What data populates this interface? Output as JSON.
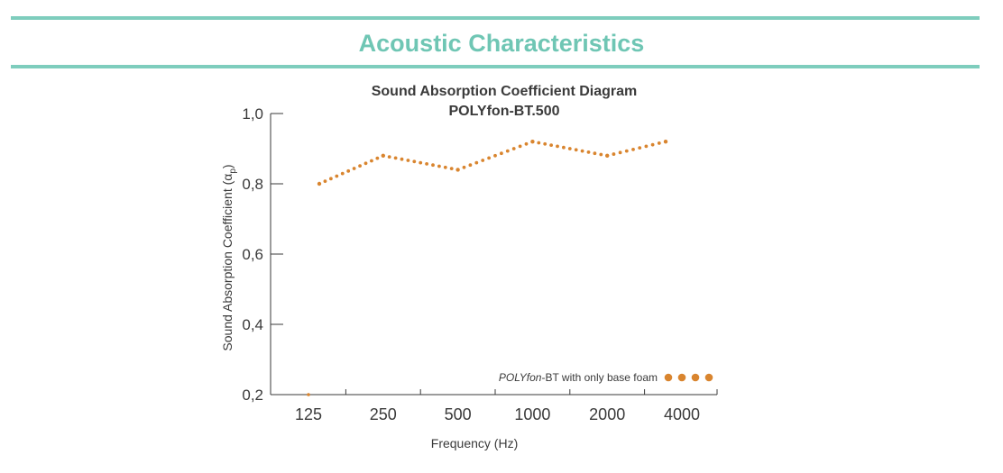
{
  "header": {
    "title": "Acoustic Characteristics"
  },
  "colors": {
    "accent": "#7ECDBD",
    "title": "#6FC6B4",
    "series": "#D9852F",
    "text": "#3a3a3a"
  },
  "chart_data": {
    "type": "line",
    "title": "Sound Absorption Coefficient Diagram",
    "subtitle": "POLYfon-BT.500",
    "xlabel": "Frequency (Hz)",
    "ylabel": "Sound Absorption Coefficient (α",
    "ylabel_sub": "p",
    "ylabel_close": ")",
    "categories": [
      "125",
      "250",
      "500",
      "1000",
      "2000",
      "4000"
    ],
    "yticks": [
      "0,2",
      "0,4",
      "0,6",
      "0,8",
      "1,0"
    ],
    "ylim": [
      0.2,
      1.0
    ],
    "grid": false,
    "series": [
      {
        "name_italic": "POLYfon",
        "name_rest": "-BT with only base foam",
        "values": [
          0.8,
          0.88,
          0.84,
          0.92,
          0.88,
          0.92
        ]
      }
    ],
    "legend_position": "bottom-right"
  }
}
